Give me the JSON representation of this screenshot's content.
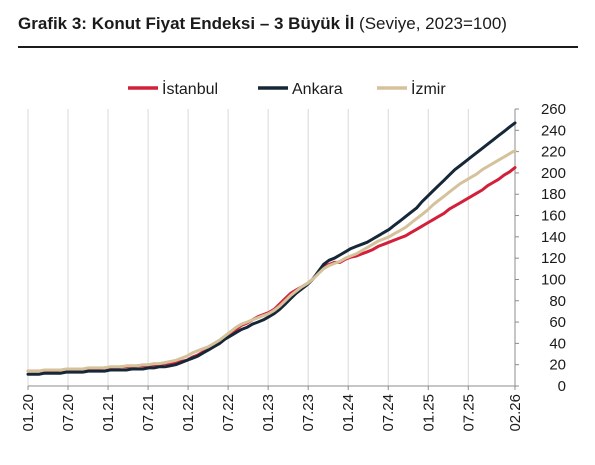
{
  "header": {
    "title_bold": "Grafik 3: Konut Fiyat Endeksi – 3 Büyük İl",
    "title_rest": " (Seviye, 2023=100)"
  },
  "chart_data": {
    "type": "line",
    "title": "Grafik 3: Konut Fiyat Endeksi – 3 Büyük İl (Seviye, 2023=100)",
    "xlabel": "",
    "ylabel": "",
    "ylim": [
      0,
      260
    ],
    "yticks": [
      0,
      20,
      40,
      60,
      80,
      100,
      120,
      140,
      160,
      180,
      200,
      220,
      240,
      260
    ],
    "grid": "vertical",
    "legend_position": "top",
    "x_start": "01.20",
    "x_end": "02.26",
    "xticks": [
      "01.20",
      "07.20",
      "01.21",
      "07.21",
      "01.22",
      "07.22",
      "01.23",
      "07.23",
      "01.24",
      "07.24",
      "01.25",
      "07.25",
      "02.26"
    ],
    "series": [
      {
        "name": "İstanbul",
        "color": "#d3203a",
        "values": [
          14,
          14,
          14,
          14,
          14,
          14,
          15,
          15,
          15,
          15,
          16,
          16,
          16,
          16,
          17,
          17,
          17,
          18,
          18,
          18,
          19,
          19,
          19,
          20,
          20,
          21,
          21,
          22,
          23,
          24,
          27,
          29,
          32,
          34,
          37,
          40,
          44,
          48,
          53,
          57,
          59,
          62,
          65,
          67,
          69,
          72,
          77,
          82,
          87,
          90,
          93,
          96,
          100,
          106,
          112,
          114,
          116,
          116,
          119,
          121,
          122,
          124,
          126,
          128,
          131,
          133,
          135,
          137,
          139,
          141,
          144,
          147,
          150,
          153,
          156,
          159,
          162,
          166,
          169,
          172,
          175,
          178,
          181,
          184,
          188,
          191,
          194,
          198,
          201,
          205
        ]
      },
      {
        "name": "Ankara",
        "color": "#162838",
        "values": [
          11,
          11,
          11,
          12,
          12,
          12,
          12,
          13,
          13,
          13,
          13,
          14,
          14,
          14,
          14,
          15,
          15,
          15,
          15,
          16,
          16,
          16,
          17,
          17,
          18,
          18,
          19,
          20,
          22,
          24,
          26,
          28,
          31,
          34,
          37,
          40,
          44,
          47,
          50,
          53,
          55,
          58,
          60,
          62,
          65,
          68,
          72,
          77,
          82,
          87,
          91,
          95,
          100,
          107,
          114,
          118,
          120,
          123,
          126,
          129,
          131,
          133,
          135,
          138,
          141,
          144,
          147,
          151,
          155,
          159,
          163,
          167,
          173,
          178,
          183,
          188,
          193,
          198,
          203,
          207,
          211,
          215,
          219,
          223,
          227,
          231,
          235,
          239,
          243,
          247
        ]
      },
      {
        "name": "İzmir",
        "color": "#d5c29b",
        "values": [
          14,
          14,
          14,
          15,
          15,
          15,
          15,
          16,
          16,
          16,
          16,
          17,
          17,
          17,
          17,
          18,
          18,
          18,
          19,
          19,
          19,
          20,
          20,
          21,
          21,
          22,
          23,
          24,
          26,
          28,
          31,
          33,
          35,
          37,
          40,
          43,
          47,
          51,
          55,
          58,
          60,
          62,
          64,
          66,
          68,
          71,
          75,
          80,
          85,
          89,
          93,
          96,
          100,
          105,
          110,
          113,
          115,
          117,
          120,
          122,
          124,
          127,
          130,
          133,
          136,
          138,
          140,
          143,
          146,
          149,
          153,
          157,
          161,
          165,
          170,
          174,
          178,
          182,
          186,
          190,
          193,
          196,
          199,
          203,
          206,
          209,
          212,
          215,
          218,
          221
        ]
      }
    ]
  }
}
